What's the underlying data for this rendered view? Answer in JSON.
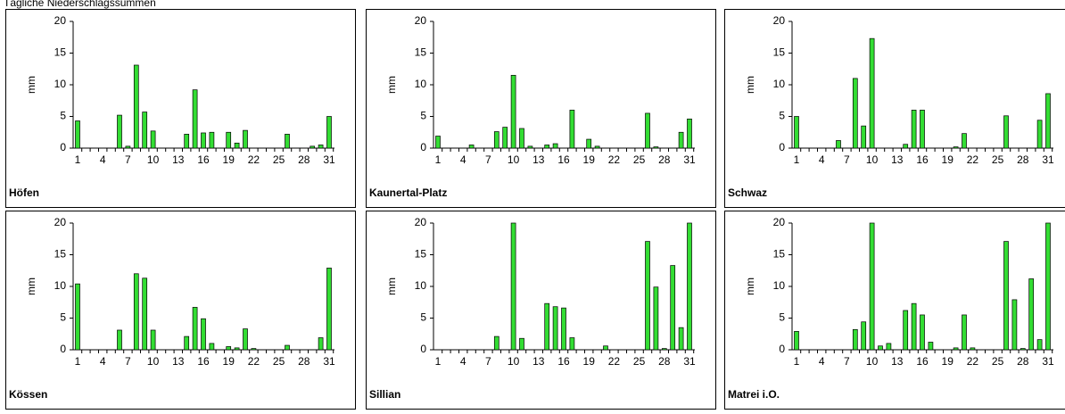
{
  "header": {
    "title": "Tägliche Niederschlagssummen"
  },
  "chart_data": [
    {
      "type": "bar",
      "title": "Höfen",
      "ylabel": "mm",
      "color": "#33dd33",
      "categories": [
        "1",
        null,
        null,
        "4",
        null,
        null,
        "7",
        null,
        null,
        "10",
        null,
        null,
        "13",
        null,
        null,
        "16",
        null,
        null,
        "19",
        null,
        null,
        "22",
        null,
        null,
        "25",
        null,
        null,
        "28",
        null,
        null,
        "31"
      ],
      "values": [
        4.3,
        0,
        0,
        0,
        0,
        5.2,
        0.3,
        13.1,
        5.7,
        2.7,
        0,
        0,
        0,
        2.2,
        9.2,
        2.4,
        2.5,
        0,
        2.5,
        0.8,
        2.8,
        0,
        0,
        0,
        0,
        2.2,
        0,
        0,
        0.3,
        0.5,
        5.0
      ],
      "ylim": [
        0,
        20
      ],
      "yticks": [
        0,
        5,
        10,
        15,
        20
      ]
    },
    {
      "type": "bar",
      "title": "Kaunertal-Platz",
      "ylabel": "mm",
      "color": "#33dd33",
      "categories": [
        "1",
        null,
        null,
        "4",
        null,
        null,
        "7",
        null,
        null,
        "10",
        null,
        null,
        "13",
        null,
        null,
        "16",
        null,
        null,
        "19",
        null,
        null,
        "22",
        null,
        null,
        "25",
        null,
        null,
        "28",
        null,
        null,
        "31"
      ],
      "values": [
        1.9,
        0,
        0,
        0,
        0.5,
        0,
        0,
        2.6,
        3.3,
        11.5,
        3.1,
        0.3,
        0,
        0.5,
        0.7,
        0,
        6.0,
        0,
        1.4,
        0.3,
        0,
        0,
        0,
        0,
        0,
        5.5,
        0.2,
        0,
        0,
        2.5,
        4.6
      ],
      "ylim": [
        0,
        20
      ],
      "yticks": [
        0,
        5,
        10,
        15,
        20
      ]
    },
    {
      "type": "bar",
      "title": "Schwaz",
      "ylabel": "mm",
      "color": "#33dd33",
      "categories": [
        "1",
        null,
        null,
        "4",
        null,
        null,
        "7",
        null,
        null,
        "10",
        null,
        null,
        "13",
        null,
        null,
        "16",
        null,
        null,
        "19",
        null,
        null,
        "22",
        null,
        null,
        "25",
        null,
        null,
        "28",
        null,
        null,
        "31"
      ],
      "values": [
        5.0,
        0,
        0,
        0,
        0,
        1.2,
        0,
        11.0,
        3.5,
        17.3,
        0,
        0,
        0,
        0.6,
        6.0,
        6.0,
        0,
        0,
        0,
        0.2,
        2.3,
        0,
        0,
        0,
        0,
        5.1,
        0,
        0,
        0,
        4.4,
        8.6
      ],
      "ylim": [
        0,
        20
      ],
      "yticks": [
        0,
        5,
        10,
        15,
        20
      ]
    },
    {
      "type": "bar",
      "title": "Kössen",
      "ylabel": "mm",
      "color": "#33dd33",
      "categories": [
        "1",
        null,
        null,
        "4",
        null,
        null,
        "7",
        null,
        null,
        "10",
        null,
        null,
        "13",
        null,
        null,
        "16",
        null,
        null,
        "19",
        null,
        null,
        "22",
        null,
        null,
        "25",
        null,
        null,
        "28",
        null,
        null,
        "31"
      ],
      "values": [
        10.4,
        0,
        0,
        0,
        0,
        3.1,
        0,
        12.0,
        11.3,
        3.1,
        0,
        0,
        0,
        2.1,
        6.7,
        4.9,
        1.0,
        0,
        0.5,
        0.3,
        3.3,
        0.2,
        0,
        0,
        0,
        0.7,
        0,
        0,
        0,
        1.9,
        12.9
      ],
      "ylim": [
        0,
        20
      ],
      "yticks": [
        0,
        5,
        10,
        15,
        20
      ]
    },
    {
      "type": "bar",
      "title": "Sillian",
      "ylabel": "mm",
      "color": "#33dd33",
      "categories": [
        "1",
        null,
        null,
        "4",
        null,
        null,
        "7",
        null,
        null,
        "10",
        null,
        null,
        "13",
        null,
        null,
        "16",
        null,
        null,
        "19",
        null,
        null,
        "22",
        null,
        null,
        "25",
        null,
        null,
        "28",
        null,
        null,
        "31"
      ],
      "values": [
        0,
        0,
        0,
        0,
        0,
        0,
        0,
        2.1,
        0,
        20,
        1.8,
        0,
        0,
        7.3,
        6.8,
        6.6,
        1.9,
        0,
        0,
        0,
        0.6,
        0,
        0,
        0,
        0,
        17.1,
        9.9,
        0.2,
        13.3,
        3.5,
        20
      ],
      "ylim": [
        0,
        20
      ],
      "yticks": [
        0,
        5,
        10,
        15,
        20
      ]
    },
    {
      "type": "bar",
      "title": "Matrei i.O.",
      "ylabel": "mm",
      "color": "#33dd33",
      "categories": [
        "1",
        null,
        null,
        "4",
        null,
        null,
        "7",
        null,
        null,
        "10",
        null,
        null,
        "13",
        null,
        null,
        "16",
        null,
        null,
        "19",
        null,
        null,
        "22",
        null,
        null,
        "25",
        null,
        null,
        "28",
        null,
        null,
        "31"
      ],
      "values": [
        2.9,
        0,
        0,
        0,
        0,
        0,
        0,
        3.2,
        4.4,
        20,
        0.6,
        1.0,
        0,
        6.2,
        7.3,
        5.5,
        1.2,
        0,
        0,
        0.3,
        5.5,
        0.3,
        0,
        0,
        0,
        17.1,
        7.9,
        0.2,
        11.2,
        1.6,
        20
      ],
      "ylim": [
        0,
        20
      ],
      "yticks": [
        0,
        5,
        10,
        15,
        20
      ]
    }
  ]
}
